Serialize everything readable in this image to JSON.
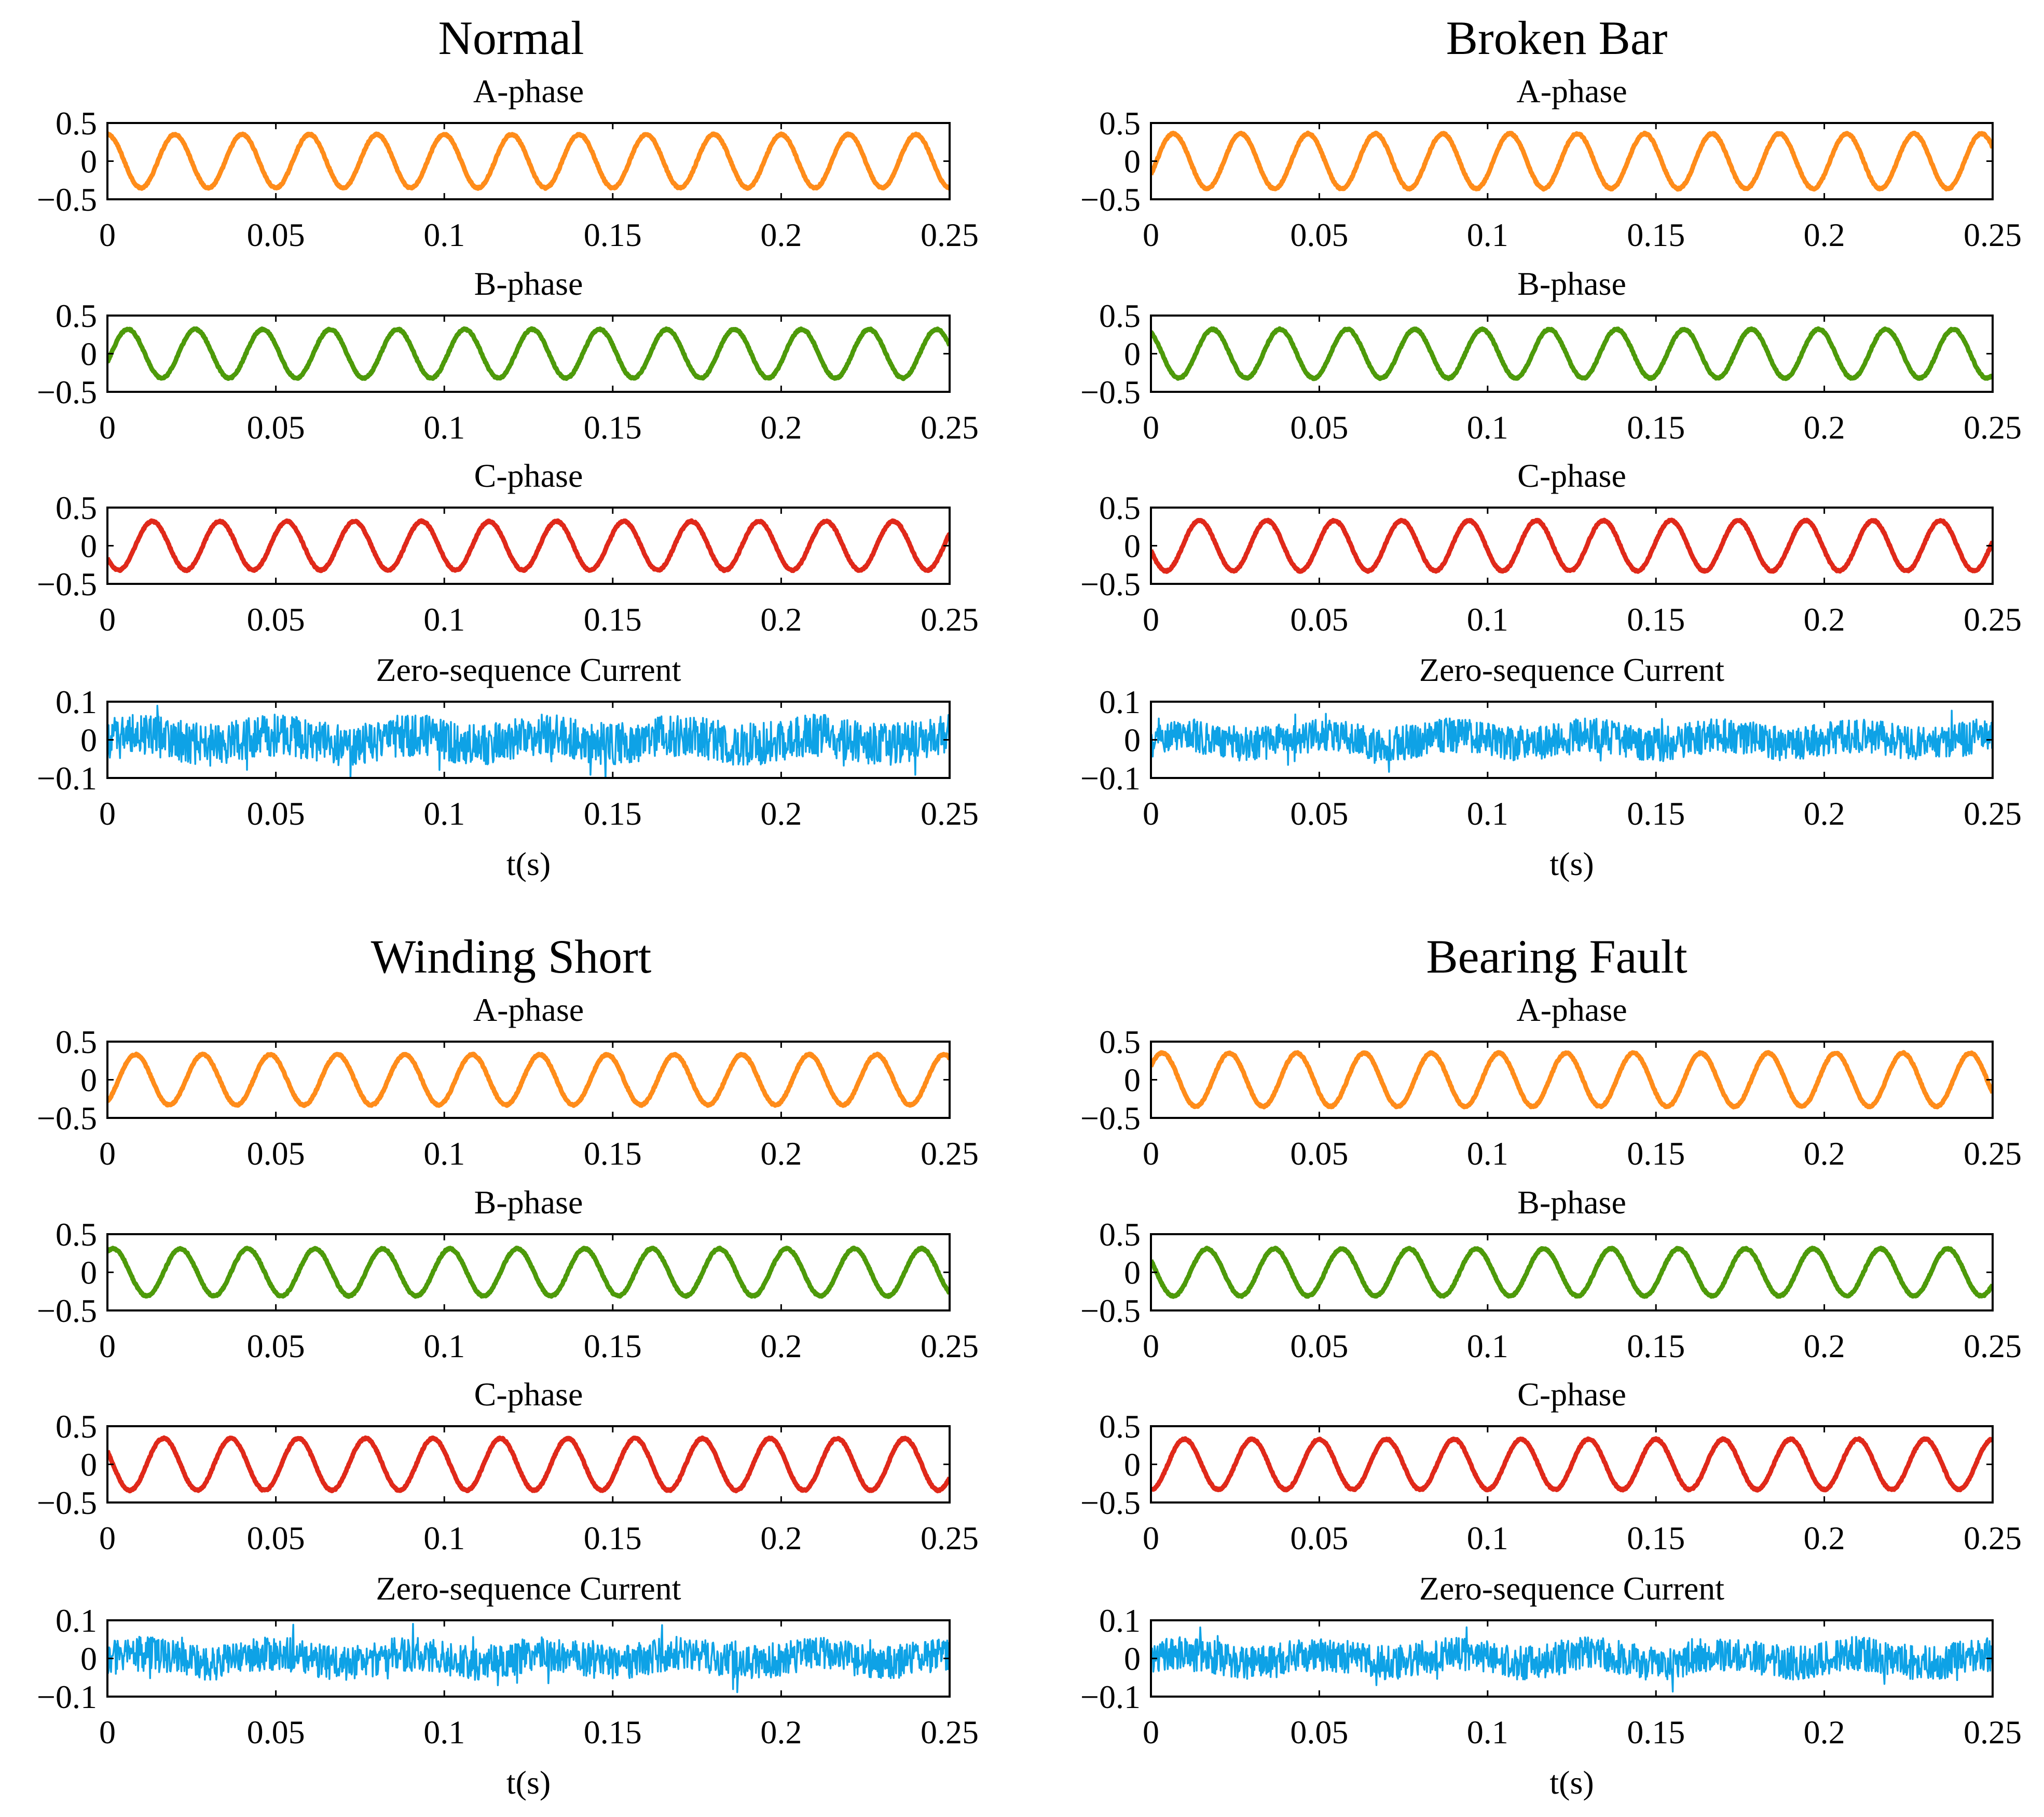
{
  "colors": {
    "A-phase": "#ff8c1a",
    "B-phase": "#4d9a0a",
    "C-phase": "#e0291a",
    "Zero-sequence Current": "#0ea2e6",
    "axes": "#000000",
    "background": "#ffffff"
  },
  "chart_data": [
    {
      "type": "line",
      "title": "Normal",
      "subplots": [
        {
          "title": "A-phase",
          "series": [
            {
              "name": "A-phase",
              "amplitude": 0.35,
              "frequency_hz": 50,
              "phase_deg": 90,
              "noise": 0.01
            }
          ],
          "x": [
            0,
            0.25
          ],
          "xlim": [
            0,
            0.25
          ],
          "ylim": [
            -0.5,
            0.5
          ],
          "xticks": [
            "0",
            "0.05",
            "0.1",
            "0.15",
            "0.2",
            "0.25"
          ],
          "yticks": [
            "0.5",
            "0",
            "−0.5"
          ],
          "xlabel": ""
        },
        {
          "title": "B-phase",
          "series": [
            {
              "name": "B-phase",
              "amplitude": 0.32,
              "frequency_hz": 50,
              "phase_deg": -20,
              "noise": 0.01
            }
          ],
          "x": [
            0,
            0.25
          ],
          "xlim": [
            0,
            0.25
          ],
          "ylim": [
            -0.5,
            0.5
          ],
          "xticks": [
            "0",
            "0.05",
            "0.1",
            "0.15",
            "0.2",
            "0.25"
          ],
          "yticks": [
            "0.5",
            "0",
            "−0.5"
          ],
          "xlabel": ""
        },
        {
          "title": "C-phase",
          "series": [
            {
              "name": "C-phase",
              "amplitude": 0.32,
              "frequency_hz": 50,
              "phase_deg": -150,
              "noise": 0.01
            }
          ],
          "x": [
            0,
            0.25
          ],
          "xlim": [
            0,
            0.25
          ],
          "ylim": [
            -0.5,
            0.5
          ],
          "xticks": [
            "0",
            "0.05",
            "0.1",
            "0.15",
            "0.2",
            "0.25"
          ],
          "yticks": [
            "0.5",
            "0",
            "−0.5"
          ],
          "xlabel": ""
        },
        {
          "title": "Zero-sequence Current",
          "series": [
            {
              "name": "Zero-sequence Current",
              "amplitude": 0.012,
              "frequency_hz": 25,
              "phase_deg": 0,
              "noise": 0.055
            }
          ],
          "x": [
            0,
            0.25
          ],
          "xlim": [
            0,
            0.25
          ],
          "ylim": [
            -0.1,
            0.1
          ],
          "xticks": [
            "0",
            "0.05",
            "0.1",
            "0.15",
            "0.2",
            "0.25"
          ],
          "yticks": [
            "0.1",
            "0",
            "−0.1"
          ],
          "xlabel": "t(s)"
        }
      ]
    },
    {
      "type": "line",
      "title": "Broken Bar",
      "subplots": [
        {
          "title": "A-phase",
          "series": [
            {
              "name": "A-phase",
              "amplitude": 0.36,
              "frequency_hz": 50,
              "phase_deg": -30,
              "noise": 0.01
            }
          ],
          "x": [
            0,
            0.25
          ],
          "xlim": [
            0,
            0.25
          ],
          "ylim": [
            -0.5,
            0.5
          ],
          "xticks": [
            "0",
            "0.05",
            "0.1",
            "0.15",
            "0.2",
            "0.25"
          ],
          "yticks": [
            "0.5",
            "0",
            "−0.5"
          ],
          "xlabel": ""
        },
        {
          "title": "B-phase",
          "series": [
            {
              "name": "B-phase",
              "amplitude": 0.32,
              "frequency_hz": 50,
              "phase_deg": 120,
              "noise": 0.01
            }
          ],
          "x": [
            0,
            0.25
          ],
          "xlim": [
            0,
            0.25
          ],
          "ylim": [
            -0.5,
            0.5
          ],
          "xticks": [
            "0",
            "0.05",
            "0.1",
            "0.15",
            "0.2",
            "0.25"
          ],
          "yticks": [
            "0.5",
            "0",
            "−0.5"
          ],
          "xlabel": ""
        },
        {
          "title": "C-phase",
          "series": [
            {
              "name": "C-phase",
              "amplitude": 0.33,
              "frequency_hz": 50,
              "phase_deg": -170,
              "noise": 0.01
            }
          ],
          "x": [
            0,
            0.25
          ],
          "xlim": [
            0,
            0.25
          ],
          "ylim": [
            -0.5,
            0.5
          ],
          "xticks": [
            "0",
            "0.05",
            "0.1",
            "0.15",
            "0.2",
            "0.25"
          ],
          "yticks": [
            "0.5",
            "0",
            "−0.5"
          ],
          "xlabel": ""
        },
        {
          "title": "Zero-sequence Current",
          "series": [
            {
              "name": "Zero-sequence Current",
              "amplitude": 0.012,
              "frequency_hz": 25,
              "phase_deg": 0,
              "noise": 0.045
            }
          ],
          "x": [
            0,
            0.25
          ],
          "xlim": [
            0,
            0.25
          ],
          "ylim": [
            -0.1,
            0.1
          ],
          "xticks": [
            "0",
            "0.05",
            "0.1",
            "0.15",
            "0.2",
            "0.25"
          ],
          "yticks": [
            "0.1",
            "0",
            "−0.1"
          ],
          "xlabel": "t(s)"
        }
      ]
    },
    {
      "type": "line",
      "title": "Winding Short",
      "subplots": [
        {
          "title": "A-phase",
          "series": [
            {
              "name": "A-phase",
              "amplitude": 0.33,
              "frequency_hz": 50,
              "phase_deg": -60,
              "noise": 0.01
            }
          ],
          "x": [
            0,
            0.25
          ],
          "xlim": [
            0,
            0.25
          ],
          "ylim": [
            -0.5,
            0.5
          ],
          "xticks": [
            "0",
            "0.05",
            "0.1",
            "0.15",
            "0.2",
            "0.25"
          ],
          "yticks": [
            "0.5",
            "0",
            "−0.5"
          ],
          "xlabel": ""
        },
        {
          "title": "B-phase",
          "series": [
            {
              "name": "B-phase",
              "amplitude": 0.31,
              "frequency_hz": 50,
              "phase_deg": 60,
              "noise": 0.01
            }
          ],
          "x": [
            0,
            0.25
          ],
          "xlim": [
            0,
            0.25
          ],
          "ylim": [
            -0.5,
            0.5
          ],
          "xticks": [
            "0",
            "0.05",
            "0.1",
            "0.15",
            "0.2",
            "0.25"
          ],
          "yticks": [
            "0.5",
            "0",
            "−0.5"
          ],
          "xlabel": ""
        },
        {
          "title": "C-phase",
          "series": [
            {
              "name": "C-phase",
              "amplitude": 0.34,
              "frequency_hz": 50,
              "phase_deg": 150,
              "noise": 0.01
            }
          ],
          "x": [
            0,
            0.25
          ],
          "xlim": [
            0,
            0.25
          ],
          "ylim": [
            -0.5,
            0.5
          ],
          "xticks": [
            "0",
            "0.05",
            "0.1",
            "0.15",
            "0.2",
            "0.25"
          ],
          "yticks": [
            "0.5",
            "0",
            "−0.5"
          ],
          "xlabel": ""
        },
        {
          "title": "Zero-sequence Current",
          "series": [
            {
              "name": "Zero-sequence Current",
              "amplitude": 0.012,
              "frequency_hz": 25,
              "phase_deg": 0,
              "noise": 0.045
            }
          ],
          "x": [
            0,
            0.25
          ],
          "xlim": [
            0,
            0.25
          ],
          "ylim": [
            -0.1,
            0.1
          ],
          "xticks": [
            "0",
            "0.05",
            "0.1",
            "0.15",
            "0.2",
            "0.25"
          ],
          "yticks": [
            "0.1",
            "0",
            "−0.1"
          ],
          "xlabel": "t(s)"
        }
      ]
    },
    {
      "type": "line",
      "title": "Bearing Fault",
      "subplots": [
        {
          "title": "A-phase",
          "series": [
            {
              "name": "A-phase",
              "amplitude": 0.35,
              "frequency_hz": 50,
              "phase_deg": 30,
              "noise": 0.01
            }
          ],
          "x": [
            0,
            0.25
          ],
          "xlim": [
            0,
            0.25
          ],
          "ylim": [
            -0.5,
            0.5
          ],
          "xticks": [
            "0",
            "0.05",
            "0.1",
            "0.15",
            "0.2",
            "0.25"
          ],
          "yticks": [
            "0.5",
            "0",
            "−0.5"
          ],
          "xlabel": ""
        },
        {
          "title": "B-phase",
          "series": [
            {
              "name": "B-phase",
              "amplitude": 0.31,
              "frequency_hz": 50,
              "phase_deg": 150,
              "noise": 0.01
            }
          ],
          "x": [
            0,
            0.25
          ],
          "xlim": [
            0,
            0.25
          ],
          "ylim": [
            -0.5,
            0.5
          ],
          "xticks": [
            "0",
            "0.05",
            "0.1",
            "0.15",
            "0.2",
            "0.25"
          ],
          "yticks": [
            "0.5",
            "0",
            "−0.5"
          ],
          "xlabel": ""
        },
        {
          "title": "C-phase",
          "series": [
            {
              "name": "C-phase",
              "amplitude": 0.33,
              "frequency_hz": 50,
              "phase_deg": -90,
              "noise": 0.01
            }
          ],
          "x": [
            0,
            0.25
          ],
          "xlim": [
            0,
            0.25
          ],
          "ylim": [
            -0.5,
            0.5
          ],
          "xticks": [
            "0",
            "0.05",
            "0.1",
            "0.15",
            "0.2",
            "0.25"
          ],
          "yticks": [
            "0.5",
            "0",
            "−0.5"
          ],
          "xlabel": ""
        },
        {
          "title": "Zero-sequence Current",
          "series": [
            {
              "name": "Zero-sequence Current",
              "amplitude": 0.012,
              "frequency_hz": 25,
              "phase_deg": 0,
              "noise": 0.045
            }
          ],
          "x": [
            0,
            0.25
          ],
          "xlim": [
            0,
            0.25
          ],
          "ylim": [
            -0.1,
            0.1
          ],
          "xticks": [
            "0",
            "0.05",
            "0.1",
            "0.15",
            "0.2",
            "0.25"
          ],
          "yticks": [
            "0.1",
            "0",
            "−0.1"
          ],
          "xlabel": "t(s)"
        }
      ]
    }
  ]
}
